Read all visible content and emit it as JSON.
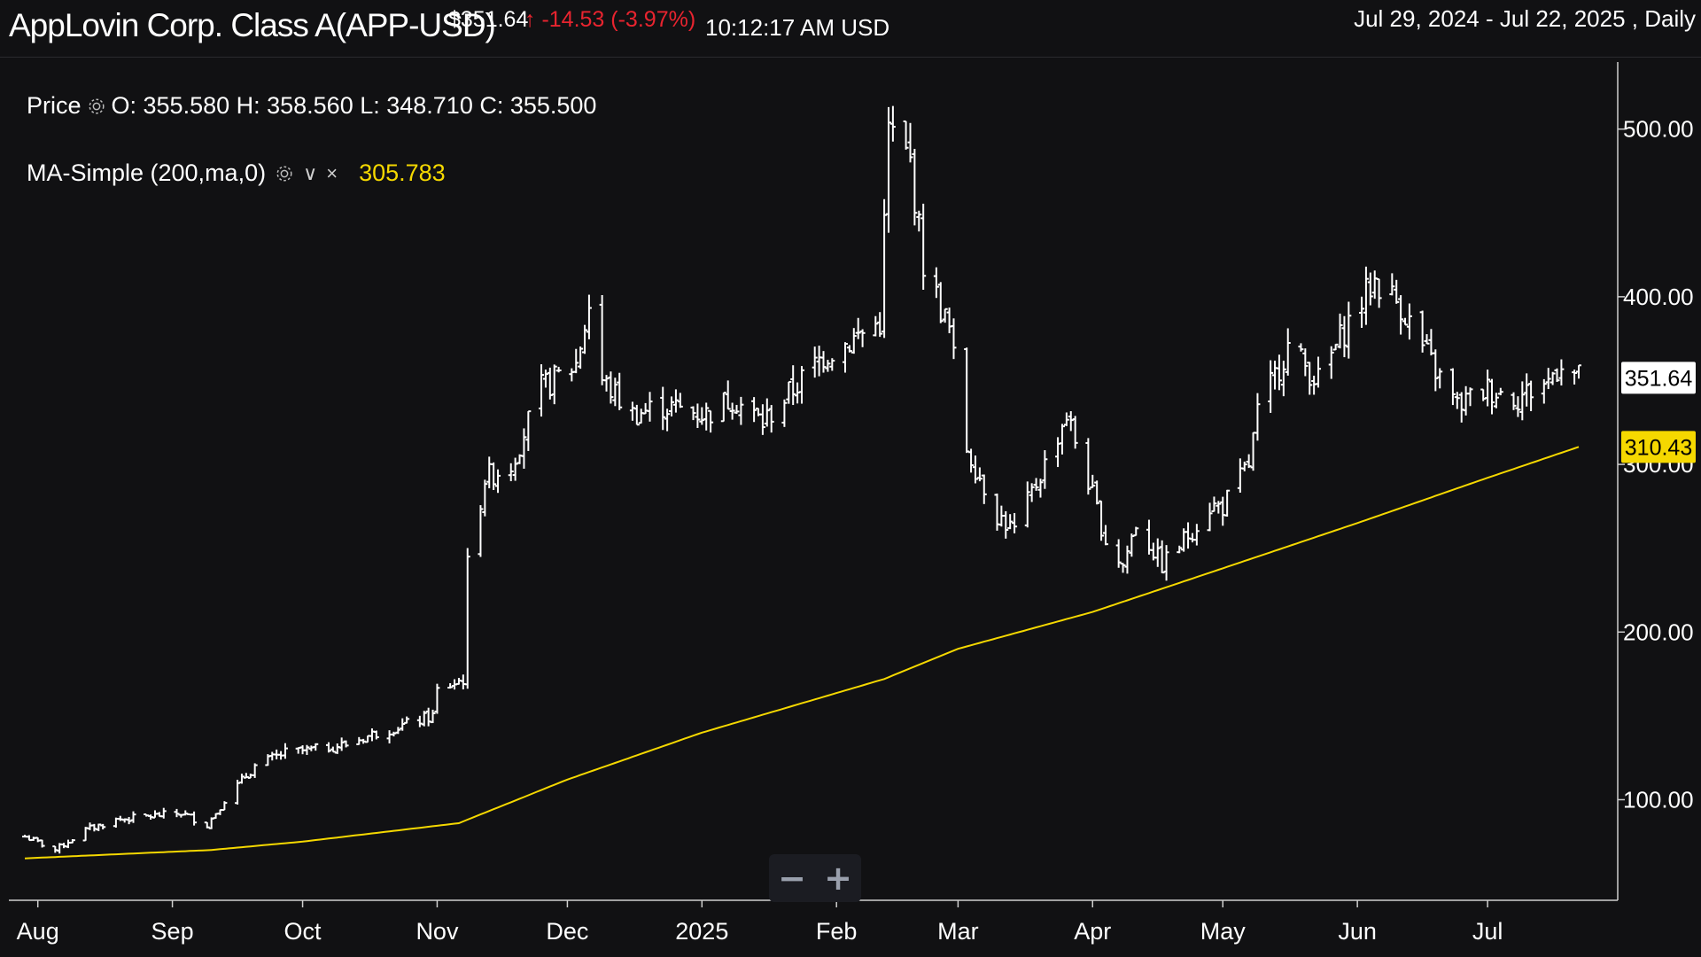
{
  "header": {
    "title": "AppLovin Corp. Class A(APP-USD)",
    "price": "$351.64",
    "change": "-14.53 (-3.97%)",
    "change_arrow": "↑",
    "time": "10:12:17 AM USD",
    "range": "Jul 29, 2024 - Jul 22, 2025 , Daily"
  },
  "legend": {
    "price_label": "Price",
    "ohlc": "O: 355.580 H: 358.560 L: 348.710 C: 355.500",
    "ma_label": "MA-Simple (200,ma,0)",
    "ma_value": "305.783",
    "ma_caret": "∨",
    "ma_close": "×"
  },
  "zoom": {
    "minus": "−",
    "plus": "+"
  },
  "colors": {
    "background": "#111113",
    "bars": "#ffffff",
    "ma": "#f5d800",
    "down": "#e8242f"
  },
  "chart_data": {
    "type": "ohlc",
    "ylim": [
      40,
      540
    ],
    "yticks": [
      100,
      200,
      300,
      400,
      500
    ],
    "ytick_labels": [
      "100.00",
      "200.00",
      "300.00",
      "400.00",
      "500.00"
    ],
    "last_price_label": "351.64",
    "last_ma_label": "310.43",
    "last_price": 351.64,
    "last_ma": 310.43,
    "x_range": [
      "2024-07-29",
      "2025-07-22"
    ],
    "xticks": [
      {
        "label": "Aug",
        "date": "2024-08-01"
      },
      {
        "label": "Sep",
        "date": "2024-09-01"
      },
      {
        "label": "Oct",
        "date": "2024-10-01"
      },
      {
        "label": "Nov",
        "date": "2024-11-01"
      },
      {
        "label": "Dec",
        "date": "2024-12-01"
      },
      {
        "label": "2025",
        "date": "2025-01-01"
      },
      {
        "label": "Feb",
        "date": "2025-02-01"
      },
      {
        "label": "Mar",
        "date": "2025-03-01"
      },
      {
        "label": "Apr",
        "date": "2025-04-01"
      },
      {
        "label": "May",
        "date": "2025-05-01"
      },
      {
        "label": "Jun",
        "date": "2025-06-01"
      },
      {
        "label": "Jul",
        "date": "2025-07-01"
      }
    ],
    "price_anchors": [
      [
        "2024-07-29",
        78
      ],
      [
        "2024-08-05",
        70
      ],
      [
        "2024-08-12",
        82
      ],
      [
        "2024-08-19",
        88
      ],
      [
        "2024-08-26",
        90
      ],
      [
        "2024-09-03",
        92
      ],
      [
        "2024-09-09",
        85
      ],
      [
        "2024-09-13",
        100
      ],
      [
        "2024-09-20",
        120
      ],
      [
        "2024-09-27",
        128
      ],
      [
        "2024-10-04",
        130
      ],
      [
        "2024-10-11",
        133
      ],
      [
        "2024-10-18",
        140
      ],
      [
        "2024-10-25",
        145
      ],
      [
        "2024-10-31",
        150
      ],
      [
        "2024-11-01",
        165
      ],
      [
        "2024-11-07",
        172
      ],
      [
        "2024-11-08",
        240
      ],
      [
        "2024-11-12",
        292
      ],
      [
        "2024-11-18",
        300
      ],
      [
        "2024-11-25",
        345
      ],
      [
        "2024-12-03",
        360
      ],
      [
        "2024-12-06",
        395
      ],
      [
        "2024-12-09",
        350
      ],
      [
        "2024-12-16",
        330
      ],
      [
        "2024-12-23",
        335
      ],
      [
        "2025-01-02",
        330
      ],
      [
        "2025-01-08",
        340
      ],
      [
        "2025-01-15",
        325
      ],
      [
        "2025-01-22",
        345
      ],
      [
        "2025-01-29",
        365
      ],
      [
        "2025-02-05",
        375
      ],
      [
        "2025-02-11",
        385
      ],
      [
        "2025-02-13",
        500
      ],
      [
        "2025-02-18",
        480
      ],
      [
        "2025-02-21",
        420
      ],
      [
        "2025-02-27",
        380
      ],
      [
        "2025-03-03",
        310
      ],
      [
        "2025-03-10",
        270
      ],
      [
        "2025-03-14",
        260
      ],
      [
        "2025-03-21",
        300
      ],
      [
        "2025-03-26",
        330
      ],
      [
        "2025-03-31",
        290
      ],
      [
        "2025-04-04",
        255
      ],
      [
        "2025-04-08",
        240
      ],
      [
        "2025-04-11",
        265
      ],
      [
        "2025-04-17",
        240
      ],
      [
        "2025-04-23",
        258
      ],
      [
        "2025-04-28",
        275
      ],
      [
        "2025-05-01",
        275
      ],
      [
        "2025-05-07",
        300
      ],
      [
        "2025-05-09",
        330
      ],
      [
        "2025-05-16",
        370
      ],
      [
        "2025-05-23",
        350
      ],
      [
        "2025-05-30",
        385
      ],
      [
        "2025-06-05",
        410
      ],
      [
        "2025-06-11",
        395
      ],
      [
        "2025-06-18",
        360
      ],
      [
        "2025-06-24",
        335
      ],
      [
        "2025-07-01",
        345
      ],
      [
        "2025-07-08",
        340
      ],
      [
        "2025-07-15",
        350
      ],
      [
        "2025-07-18",
        362
      ],
      [
        "2025-07-22",
        351.64
      ]
    ],
    "ma_anchors": [
      [
        "2024-07-29",
        65
      ],
      [
        "2024-09-10",
        70
      ],
      [
        "2024-10-01",
        75
      ],
      [
        "2024-11-06",
        86
      ],
      [
        "2024-12-01",
        112
      ],
      [
        "2025-01-01",
        140
      ],
      [
        "2025-02-12",
        172
      ],
      [
        "2025-03-01",
        190
      ],
      [
        "2025-04-01",
        212
      ],
      [
        "2025-05-01",
        238
      ],
      [
        "2025-06-01",
        265
      ],
      [
        "2025-07-01",
        292
      ],
      [
        "2025-07-22",
        310.43
      ]
    ]
  }
}
